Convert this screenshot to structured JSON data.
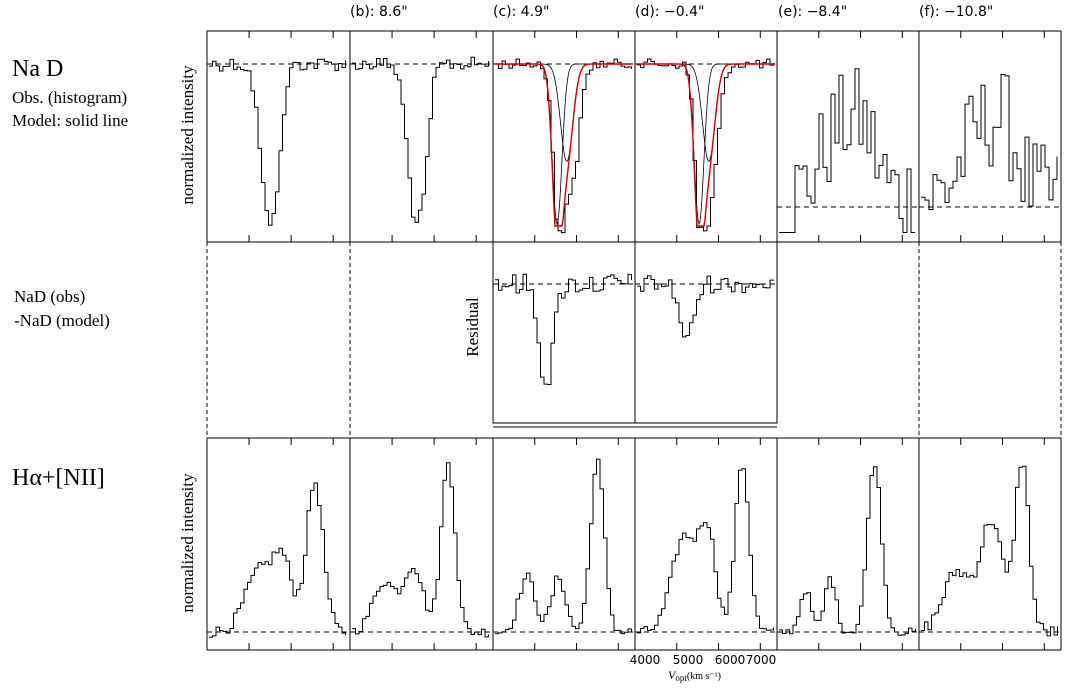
{
  "figure": {
    "left_labels": {
      "nad_title": "Na D",
      "nad_obs": "Obs. (histogram)",
      "nad_model": "Model: solid line",
      "residual_line1": "NaD (obs)",
      "residual_line2": "-NaD (model)",
      "halpha_title": "Hα+[NII]"
    },
    "ylabels": {
      "top": "normalized intensity",
      "middle": "Residual",
      "bottom": "normalized intensity"
    },
    "panel_titles": [
      "",
      "(b): 8.6\"",
      "(c): 4.9\"",
      "(d): −0.4\"",
      "(e): −8.4\"",
      "(f): −10.8\""
    ],
    "xaxis": {
      "ticks": [
        "4000",
        "5000",
        "6000",
        "7000"
      ],
      "label": "V",
      "label_sub": "opt",
      "label_units": "(km s⁻¹)"
    },
    "colors": {
      "observed": "#000000",
      "model_total": "#cc0000",
      "model_component": "#000000"
    }
  },
  "chart_data": [
    {
      "type": "line",
      "row": "Na D",
      "style": "histogram with model overlay",
      "panels": [
        {
          "label": "",
          "note": "absorption trough, continuum at 1"
        },
        {
          "label": "(b): 8.6\"",
          "note": "absorption trough, continuum at 1"
        },
        {
          "label": "(c): 4.9\"",
          "note": "double-component model fit (red total, black components)"
        },
        {
          "label": "(d): −0.4\"",
          "note": "double-component model fit (red total, black components)"
        },
        {
          "label": "(e): −8.4\"",
          "note": "noisy emission, continuum dashed"
        },
        {
          "label": "(f): −10.8\"",
          "note": "noisy emission, continuum dashed"
        }
      ],
      "series": [
        {
          "name": "Obs. (histogram)"
        },
        {
          "name": "Model: solid line"
        }
      ]
    },
    {
      "type": "line",
      "row": "Residual",
      "ylabel": "Residual",
      "panels_shown": [
        "(c): 4.9\"",
        "(d): −0.4\""
      ],
      "note": "NaD (obs) - NaD (model)"
    },
    {
      "type": "line",
      "row": "Hα+[NII]",
      "ylabel": "normalized intensity",
      "x_ticks": [
        4000,
        5000,
        6000,
        7000
      ],
      "xlabel": "V opt (km s⁻¹)",
      "note": "three emission peaks per panel ([NII]6548, Hα, [NII]6583)"
    }
  ]
}
